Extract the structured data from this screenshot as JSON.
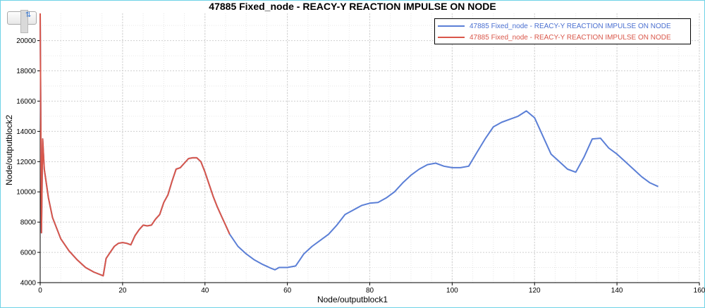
{
  "chart_data": {
    "type": "line",
    "title": "47885 Fixed_node - REACY-Y REACTION IMPULSE ON NODE",
    "xlabel": "Node/outputblock1",
    "ylabel": "Node/outputblock2",
    "xlim": [
      0,
      160
    ],
    "ylim": [
      4000,
      21800
    ],
    "xticks": [
      0,
      20,
      40,
      60,
      80,
      100,
      120,
      140,
      160
    ],
    "yticks": [
      4000,
      6000,
      8000,
      10000,
      12000,
      14000,
      16000,
      18000,
      20000
    ],
    "grid": true,
    "legend_position": "top-right",
    "series": [
      {
        "name": "47885 Fixed_node - REACY-Y REACTION IMPULSE ON NODE",
        "color": "#5b7fd6",
        "x": [
          0,
          0.3,
          0.6,
          1,
          2,
          3,
          5,
          7,
          9,
          11,
          13,
          15.3,
          16,
          17,
          18,
          19,
          20,
          21,
          22,
          23,
          24,
          25,
          26,
          27,
          28,
          29,
          30,
          31,
          32,
          33,
          34,
          35,
          36,
          37,
          38,
          39,
          40,
          41,
          42,
          43,
          44,
          45,
          46,
          48,
          50,
          52,
          54,
          56,
          57,
          58,
          60,
          62,
          63,
          64,
          66,
          68,
          70,
          72,
          74,
          76,
          78,
          80,
          82,
          84,
          86,
          88,
          90,
          92,
          94,
          96,
          98,
          100,
          102,
          104,
          106,
          108,
          110,
          112,
          114,
          116,
          118,
          120,
          122,
          124,
          126,
          128,
          130,
          132,
          134,
          136,
          138,
          140,
          142,
          144,
          146,
          148,
          150
        ],
        "y": [
          21800,
          7300,
          13500,
          11500,
          9600,
          8300,
          6900,
          6100,
          5500,
          5000,
          4700,
          4450,
          5600,
          6000,
          6400,
          6600,
          6650,
          6600,
          6500,
          7100,
          7500,
          7800,
          7750,
          7800,
          8200,
          8500,
          9300,
          9800,
          10700,
          11500,
          11600,
          11900,
          12200,
          12250,
          12250,
          12000,
          11300,
          10500,
          9700,
          9000,
          8400,
          7800,
          7200,
          6400,
          5900,
          5500,
          5200,
          4950,
          4850,
          5000,
          5000,
          5100,
          5500,
          5900,
          6400,
          6800,
          7200,
          7800,
          8500,
          8800,
          9100,
          9250,
          9300,
          9600,
          10000,
          10600,
          11100,
          11500,
          11800,
          11900,
          11700,
          11600,
          11600,
          11700,
          12600,
          13500,
          14300,
          14600,
          14800,
          15000,
          15350,
          14900,
          13700,
          12500,
          12000,
          11500,
          11300,
          12300,
          13500,
          13550,
          12900,
          12500,
          12000,
          11500,
          11000,
          10600,
          10350
        ]
      },
      {
        "name": "47885 Fixed_node - REACY-Y REACTION IMPULSE ON NODE",
        "color": "#d9574a",
        "x": [
          0,
          0.3,
          0.6,
          1,
          2,
          3,
          5,
          7,
          9,
          11,
          13,
          15.3,
          16,
          17,
          18,
          19,
          20,
          21,
          22,
          23,
          24,
          25,
          26,
          27,
          28,
          29,
          30,
          31,
          32,
          33,
          34,
          35,
          36,
          37,
          38,
          39,
          40,
          41,
          42,
          43,
          44,
          45,
          46
        ],
        "y": [
          21800,
          7300,
          13500,
          11500,
          9600,
          8300,
          6900,
          6100,
          5500,
          5000,
          4700,
          4450,
          5600,
          6000,
          6400,
          6600,
          6650,
          6600,
          6500,
          7100,
          7500,
          7800,
          7750,
          7800,
          8200,
          8500,
          9300,
          9800,
          10700,
          11500,
          11600,
          11900,
          12200,
          12250,
          12250,
          12000,
          11300,
          10500,
          9700,
          9000,
          8400,
          7800,
          7200
        ]
      }
    ]
  },
  "legend": {
    "entries": [
      {
        "label": "47885 Fixed_node - REACY-Y REACTION IMPULSE ON NODE",
        "color": "#5b7fd6"
      },
      {
        "label": "47885 Fixed_node - REACY-Y REACTION IMPULSE ON NODE",
        "color": "#d9574a"
      }
    ]
  },
  "toolbar": {
    "icon": "zoom-control-icon"
  }
}
